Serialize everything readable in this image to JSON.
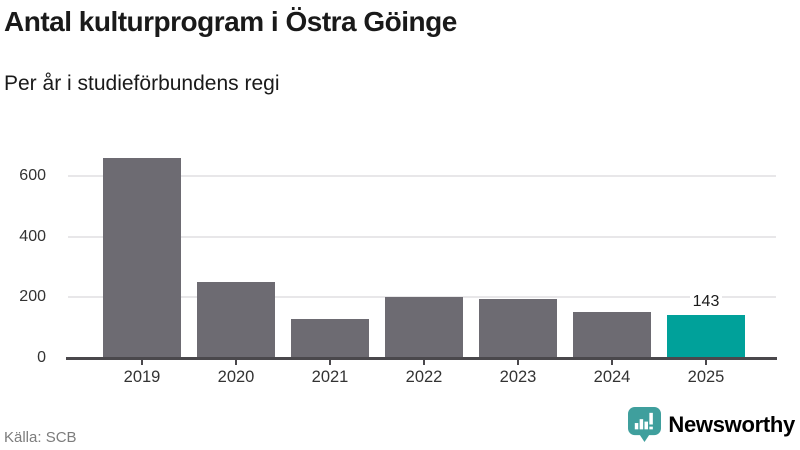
{
  "header": {
    "title": "Antal kulturprogram i Östra Göinge",
    "subtitle": "Per år i studieförbundens regi"
  },
  "chart_data": {
    "type": "bar",
    "title": "Antal kulturprogram i Östra Göinge",
    "subtitle": "Per år i studieförbundens regi",
    "categories": [
      "2019",
      "2020",
      "2021",
      "2022",
      "2023",
      "2024",
      "2025"
    ],
    "values": [
      660,
      251,
      130,
      203,
      196,
      151,
      143
    ],
    "highlight_index": 6,
    "highlight_value_label": "143",
    "xlabel": "",
    "ylabel": "",
    "yticks": [
      0,
      200,
      400,
      600
    ],
    "ylim": [
      0,
      720
    ],
    "grid": "horizontal",
    "legend": "none",
    "colors": {
      "bar": "#6d6b72",
      "highlight_bar": "#00a19a",
      "axis_line": "#4a484c",
      "gridline": "#e8e7e9",
      "tick_label": "#333333"
    }
  },
  "footer": {
    "source": "Källa: SCB",
    "brand": "Newsworthy",
    "brand_color": "#3f9f9d",
    "logo_icon": "newsworthy-pin-barchart-icon"
  }
}
